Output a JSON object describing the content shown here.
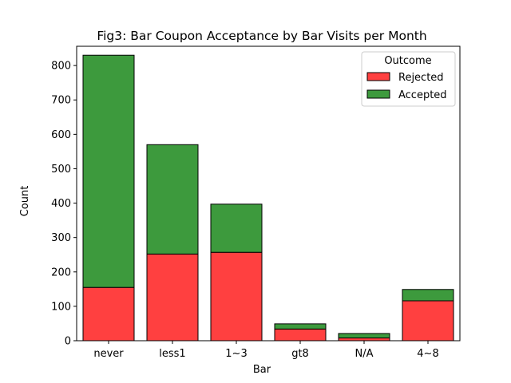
{
  "chart_data": {
    "type": "bar",
    "stacked": true,
    "title": "Fig3: Bar Coupon Acceptance by Bar Visits per Month",
    "xlabel": "Bar",
    "ylabel": "Count",
    "categories": [
      "never",
      "less1",
      "1~3",
      "gt8",
      "N/A",
      "4~8"
    ],
    "series": [
      {
        "name": "Rejected",
        "color": "#ff4040",
        "values": [
          155,
          252,
          257,
          34,
          8,
          116
        ]
      },
      {
        "name": "Accepted",
        "color": "#3d9a3d",
        "values": [
          675,
          318,
          140,
          15,
          13,
          33
        ]
      }
    ],
    "ylim": [
      0,
      856
    ],
    "yticks": [
      0,
      100,
      200,
      300,
      400,
      500,
      600,
      700,
      800
    ],
    "legend": {
      "title": "Outcome",
      "position": "top-right"
    },
    "grid": false
  }
}
